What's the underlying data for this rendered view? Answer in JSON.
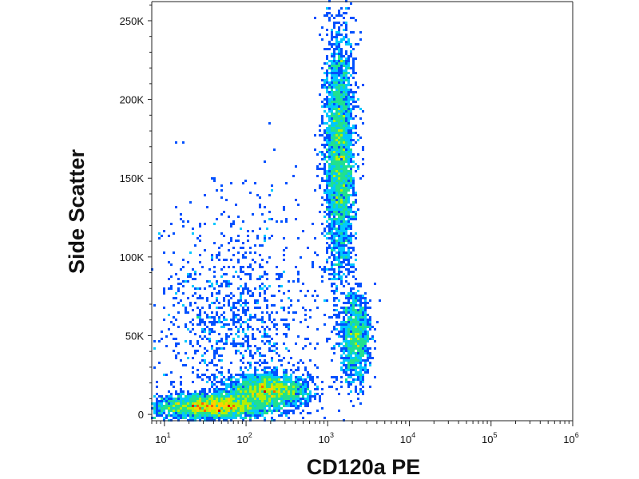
{
  "chart_data": {
    "type": "scatter",
    "style": "flow cytometry density dot plot (pseudocolor: blue=low, cyan/green/yellow=mid, red=high density)",
    "xlabel": "CD120a PE",
    "ylabel": "Side Scatter",
    "x_scale": "log",
    "xlim": [
      7,
      1000000
    ],
    "x_ticks": [
      {
        "value": 10,
        "base": "10",
        "exp": "1"
      },
      {
        "value": 100,
        "base": "10",
        "exp": "2"
      },
      {
        "value": 1000,
        "base": "10",
        "exp": "3"
      },
      {
        "value": 10000,
        "base": "10",
        "exp": "4"
      },
      {
        "value": 100000,
        "base": "10",
        "exp": "5"
      },
      {
        "value": 1000000,
        "base": "10",
        "exp": "6"
      }
    ],
    "y_scale": "linear",
    "ylim": [
      -4000,
      262144
    ],
    "y_ticks": [
      {
        "value": 0,
        "label": "0"
      },
      {
        "value": 50000,
        "label": "50K"
      },
      {
        "value": 100000,
        "label": "100K"
      },
      {
        "value": 150000,
        "label": "150K"
      },
      {
        "value": 200000,
        "label": "200K"
      },
      {
        "value": 250000,
        "label": "250K"
      }
    ],
    "grid": false,
    "populations": [
      {
        "x_center": 40,
        "y_center": 5000,
        "x_spread_decades": 0.35,
        "y_spread": 4000,
        "density": "very high",
        "n": 2600
      },
      {
        "x_center": 190,
        "y_center": 15000,
        "x_spread_decades": 0.25,
        "y_spread": 5000,
        "density": "high",
        "n": 1900
      },
      {
        "x_center": 1400,
        "y_center": 165000,
        "x_spread_decades": 0.09,
        "y_spread": 40000,
        "density": "high",
        "n": 3200
      },
      {
        "x_center": 2200,
        "y_center": 48000,
        "x_spread_decades": 0.09,
        "y_spread": 14000,
        "density": "medium",
        "n": 1100
      },
      {
        "x_center": 80,
        "y_center": 55000,
        "x_spread_decades": 0.5,
        "y_spread": 40000,
        "density": "low",
        "n": 1300
      }
    ]
  }
}
